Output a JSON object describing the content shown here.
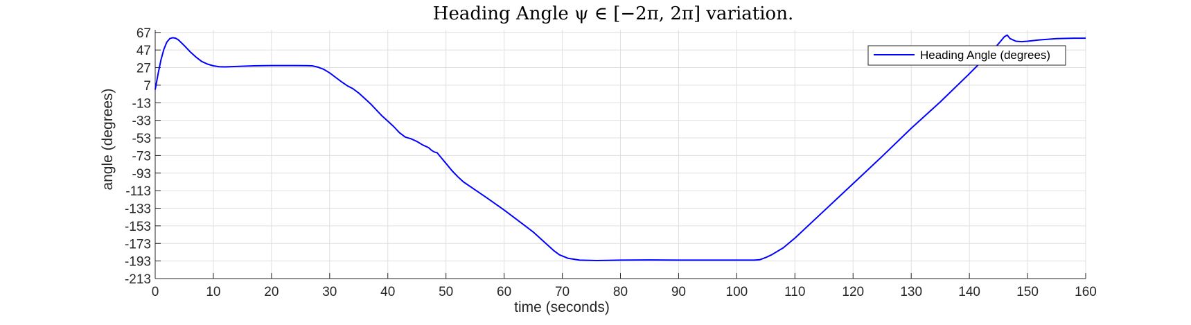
{
  "chart_data": {
    "type": "line",
    "title": "Heading Angle ψ ∈ [−2π, 2π] variation.",
    "xlabel": "time (seconds)",
    "ylabel": "angle (degrees)",
    "xlim": [
      0,
      160
    ],
    "ylim": [
      -213,
      70
    ],
    "xticks": [
      0,
      10,
      20,
      30,
      40,
      50,
      60,
      70,
      80,
      90,
      100,
      110,
      120,
      130,
      140,
      150,
      160
    ],
    "yticks": [
      67,
      47,
      27,
      7,
      -13,
      -33,
      -53,
      -73,
      -93,
      -113,
      -133,
      -153,
      -173,
      -193,
      -213
    ],
    "grid": true,
    "legend_position": "top-right",
    "series": [
      {
        "name": "Heading Angle (degrees)",
        "color": "#0000ff",
        "points": [
          [
            0,
            2
          ],
          [
            0.5,
            20
          ],
          [
            1,
            36
          ],
          [
            1.5,
            48
          ],
          [
            2,
            56
          ],
          [
            2.5,
            60
          ],
          [
            3,
            61
          ],
          [
            3.5,
            60.5
          ],
          [
            4,
            58.5
          ],
          [
            5,
            52
          ],
          [
            6,
            45
          ],
          [
            7,
            39
          ],
          [
            8,
            34
          ],
          [
            9,
            31
          ],
          [
            10,
            29
          ],
          [
            11,
            28
          ],
          [
            12,
            27.8
          ],
          [
            14,
            28.3
          ],
          [
            17,
            29
          ],
          [
            20,
            29.3
          ],
          [
            24,
            29.3
          ],
          [
            26,
            29.2
          ],
          [
            27,
            29
          ],
          [
            28,
            27.5
          ],
          [
            29,
            25
          ],
          [
            30,
            21
          ],
          [
            31,
            16
          ],
          [
            32,
            11
          ],
          [
            33,
            6.5
          ],
          [
            34,
            3
          ],
          [
            35,
            -2
          ],
          [
            36,
            -8
          ],
          [
            37,
            -14
          ],
          [
            38,
            -21
          ],
          [
            39,
            -28
          ],
          [
            40,
            -34
          ],
          [
            41,
            -40
          ],
          [
            42,
            -47
          ],
          [
            43,
            -52
          ],
          [
            44,
            -54
          ],
          [
            45,
            -57
          ],
          [
            46,
            -61
          ],
          [
            47,
            -64
          ],
          [
            47.5,
            -67
          ],
          [
            48,
            -69
          ],
          [
            48.5,
            -70
          ],
          [
            49,
            -74
          ],
          [
            50,
            -82
          ],
          [
            51,
            -90
          ],
          [
            52,
            -97
          ],
          [
            53,
            -103
          ],
          [
            55,
            -112
          ],
          [
            57,
            -121
          ],
          [
            60,
            -135
          ],
          [
            62,
            -145
          ],
          [
            65,
            -160
          ],
          [
            67,
            -172
          ],
          [
            68.5,
            -181
          ],
          [
            69.5,
            -186
          ],
          [
            71,
            -190
          ],
          [
            73,
            -192
          ],
          [
            76,
            -192.5
          ],
          [
            80,
            -192
          ],
          [
            85,
            -191.8
          ],
          [
            90,
            -192
          ],
          [
            95,
            -192
          ],
          [
            100,
            -192
          ],
          [
            103,
            -192
          ],
          [
            104,
            -191.5
          ],
          [
            105,
            -189
          ],
          [
            106,
            -186
          ],
          [
            108,
            -178
          ],
          [
            110,
            -167
          ],
          [
            115,
            -136
          ],
          [
            120,
            -105
          ],
          [
            125,
            -74
          ],
          [
            130,
            -42
          ],
          [
            135,
            -12
          ],
          [
            140,
            20
          ],
          [
            143,
            40
          ],
          [
            144,
            47
          ],
          [
            145,
            54
          ],
          [
            146,
            62
          ],
          [
            146.5,
            64
          ],
          [
            147,
            60
          ],
          [
            148,
            57
          ],
          [
            149,
            56.5
          ],
          [
            150,
            57
          ],
          [
            152,
            58.5
          ],
          [
            155,
            60
          ],
          [
            158,
            60.5
          ],
          [
            160,
            60.5
          ]
        ]
      }
    ]
  }
}
